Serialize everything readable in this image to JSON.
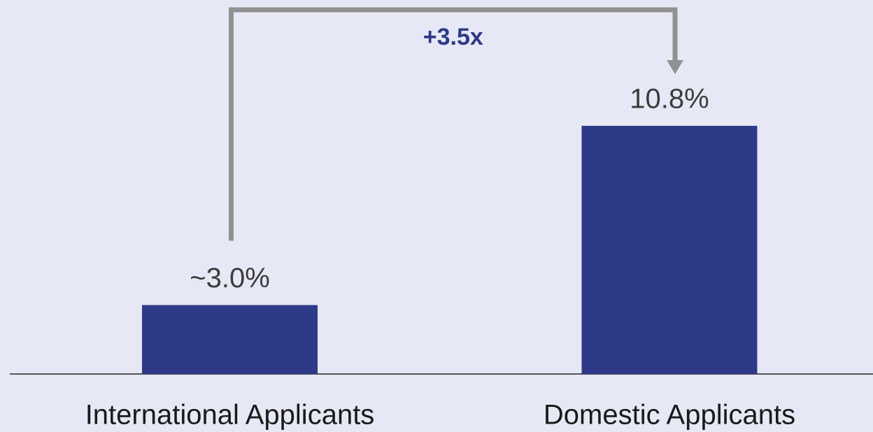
{
  "chart_data": {
    "type": "bar",
    "categories": [
      "International Applicants",
      "Domestic Applicants"
    ],
    "values": [
      3.0,
      10.8
    ],
    "value_labels": [
      "~3.0%",
      "10.8%"
    ],
    "color": "#2e3a87",
    "annotation": "+3.5x",
    "annotation_color": "#2e3a87",
    "arrow_color": "#919191"
  }
}
